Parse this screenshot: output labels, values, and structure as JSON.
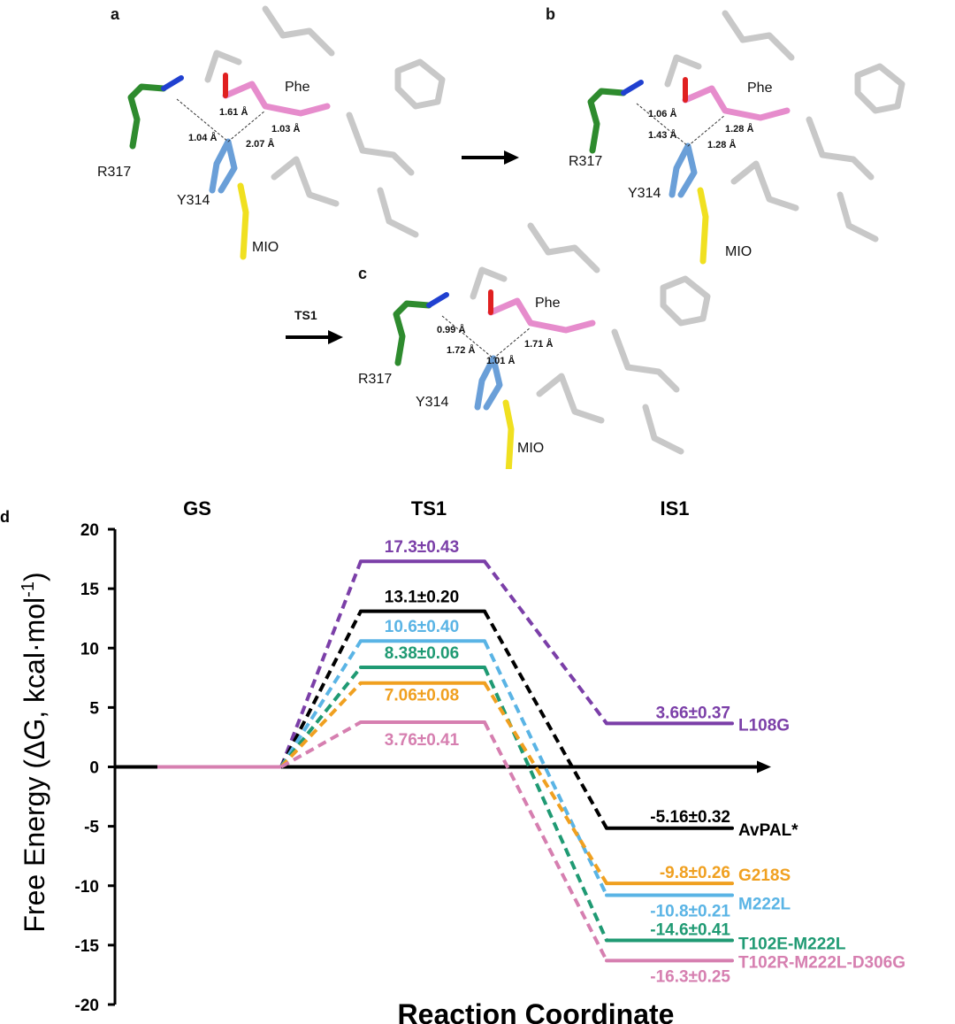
{
  "panels": {
    "a": {
      "letter": "a",
      "labels": {
        "phe": "Phe",
        "r317": "R317",
        "y314": "Y314",
        "mio": "MIO"
      },
      "distances": [
        "1.61 Å",
        "1.03 Å",
        "1.04 Å",
        "2.07 Å"
      ]
    },
    "b": {
      "letter": "b",
      "labels": {
        "phe": "Phe",
        "r317": "R317",
        "y314": "Y314",
        "mio": "MIO"
      },
      "distances": [
        "1.06 Å",
        "1.28 Å",
        "1.43 Å",
        "1.28 Å"
      ]
    },
    "c": {
      "letter": "c",
      "arrow_label": "TS1",
      "labels": {
        "phe": "Phe",
        "r317": "R317",
        "y314": "Y314",
        "mio": "MIO"
      },
      "distances": [
        "0.99 Å",
        "1.71 Å",
        "1.72 Å",
        "1.01 Å"
      ]
    },
    "d": {
      "letter": "d"
    }
  },
  "colors": {
    "arginine": "#2e8b2e",
    "tyrosine": "#6a9fd8",
    "substrate": "#e68ccc",
    "mio": "#f0e020",
    "residue": "#c8c8c8",
    "oxygen": "#e02020",
    "nitrogen": "#2040d0"
  },
  "chart_data": {
    "type": "line",
    "title": "",
    "xlabel": "Reaction Coordinate",
    "ylabel": "Free Energy (ΔG, kcal·mol-1)",
    "ylabel_main": "Free Energy (ΔG, kcal·mol",
    "ylabel_sup": "-1",
    "ylabel_end": ")",
    "ylim": [
      -20,
      20
    ],
    "yticks": [
      "20",
      "15",
      "10",
      "5",
      "0",
      "-5",
      "-10",
      "-15",
      "-20"
    ],
    "states": [
      "GS",
      "TS1",
      "IS1"
    ],
    "grid": false,
    "series": [
      {
        "name": "L108G",
        "color": "#7b3fa8",
        "values": [
          0,
          17.3,
          3.66
        ],
        "labels": [
          "",
          "17.3±0.43",
          "3.66±0.37"
        ]
      },
      {
        "name": "AvPAL*",
        "color": "#000000",
        "values": [
          0,
          13.1,
          -5.16
        ],
        "labels": [
          "",
          "13.1±0.20",
          "-5.16±0.32"
        ]
      },
      {
        "name": "M222L",
        "color": "#5ab4e5",
        "values": [
          0,
          10.6,
          -10.8
        ],
        "labels": [
          "",
          "10.6±0.40",
          "-10.8±0.21"
        ]
      },
      {
        "name": "T102E-M222L",
        "color": "#1f9a73",
        "values": [
          0,
          8.38,
          -14.6
        ],
        "labels": [
          "",
          "8.38±0.06",
          "-14.6±0.41"
        ]
      },
      {
        "name": "G218S",
        "color": "#f0a020",
        "values": [
          0,
          7.06,
          -9.8
        ],
        "labels": [
          "",
          "7.06±0.08",
          "-9.8±0.26"
        ]
      },
      {
        "name": "T102R-M222L-D306G",
        "color": "#d67fb0",
        "values": [
          0,
          3.76,
          -16.3
        ],
        "labels": [
          "",
          "3.76±0.41",
          "-16.3±0.25"
        ]
      }
    ]
  }
}
